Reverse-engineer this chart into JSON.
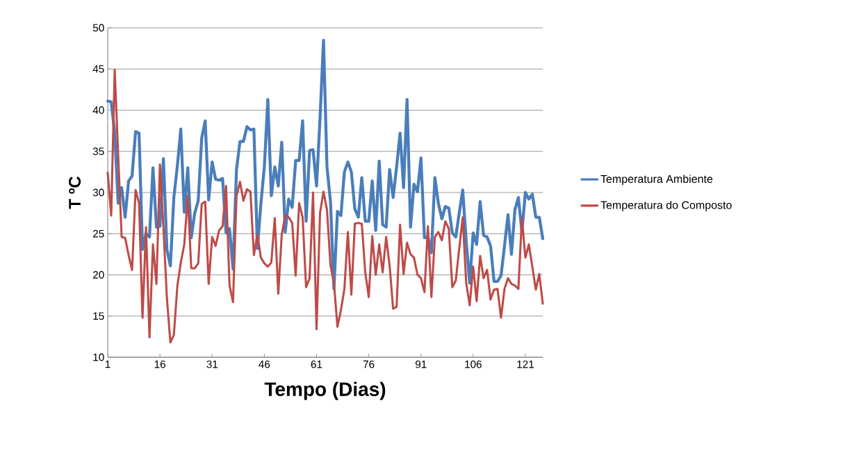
{
  "chart_data": {
    "type": "line",
    "xlabel": "Tempo (Dias)",
    "ylabel": "T ºC",
    "x": [
      1,
      2,
      3,
      4,
      5,
      6,
      7,
      8,
      9,
      10,
      11,
      12,
      13,
      14,
      15,
      16,
      17,
      18,
      19,
      20,
      21,
      22,
      23,
      24,
      25,
      26,
      27,
      28,
      29,
      30,
      31,
      32,
      33,
      34,
      35,
      36,
      37,
      38,
      39,
      40,
      41,
      42,
      43,
      44,
      45,
      46,
      47,
      48,
      49,
      50,
      51,
      52,
      53,
      54,
      55,
      56,
      57,
      58,
      59,
      60,
      61,
      62,
      63,
      64,
      65,
      66,
      67,
      68,
      69,
      70,
      71,
      72,
      73,
      74,
      75,
      76,
      77,
      78,
      79,
      80,
      81,
      82,
      83,
      84,
      85,
      86,
      87,
      88,
      89,
      90,
      91,
      92,
      93,
      94,
      95,
      96,
      97,
      98,
      99,
      100,
      101,
      102,
      103,
      104,
      105,
      106,
      107,
      108,
      109,
      110,
      111,
      112,
      113,
      114,
      115,
      116,
      117,
      118,
      119,
      120,
      121,
      122,
      123,
      124,
      125,
      126
    ],
    "series": [
      {
        "name": "Temperatura  Ambiente",
        "color": "#4a7ebb",
        "values": [
          41.1,
          41.0,
          37.3,
          28.7,
          30.6,
          27.0,
          31.4,
          32.0,
          37.4,
          37.2,
          23.1,
          25.0,
          24.6,
          33.0,
          25.8,
          25.9,
          34.1,
          23.1,
          21.1,
          29.4,
          33.2,
          37.7,
          27.6,
          33.0,
          24.5,
          27.5,
          29.0,
          36.6,
          38.7,
          29.1,
          33.7,
          31.6,
          31.5,
          31.7,
          25.1,
          25.6,
          20.7,
          32.8,
          36.2,
          36.2,
          38.0,
          37.6,
          37.7,
          23.2,
          28.6,
          33.1,
          41.3,
          29.6,
          33.1,
          30.8,
          36.1,
          25.2,
          29.2,
          28.2,
          33.9,
          33.9,
          38.7,
          26.5,
          35.1,
          35.2,
          30.8,
          39.0,
          48.5,
          33.1,
          28.9,
          18.3,
          27.7,
          27.2,
          32.5,
          33.7,
          32.5,
          28.0,
          27.0,
          31.8,
          26.5,
          26.5,
          31.4,
          25.4,
          33.8,
          26.1,
          25.8,
          32.8,
          29.4,
          33.1,
          37.2,
          30.6,
          41.3,
          25.8,
          31.0,
          30.1,
          34.2,
          24.5,
          24.6,
          22.7,
          31.8,
          28.7,
          26.8,
          28.3,
          28.1,
          25.1,
          24.6,
          27.5,
          30.3,
          24.1,
          19.0,
          25.1,
          23.7,
          28.9,
          24.8,
          24.6,
          23.5,
          19.2,
          19.2,
          19.9,
          23.5,
          27.3,
          22.5,
          27.9,
          29.4,
          25.2,
          30.0,
          29.2,
          29.8,
          27.0,
          27.0,
          24.4
        ]
      },
      {
        "name": "Temperatura do Composto",
        "color": "#be4b48",
        "values": [
          32.4,
          27.2,
          44.9,
          34.6,
          24.6,
          24.5,
          22.4,
          20.6,
          30.3,
          28.7,
          14.8,
          25.8,
          12.4,
          23.7,
          18.9,
          33.4,
          25.8,
          17.2,
          11.8,
          12.7,
          18.6,
          21.5,
          23.7,
          29.6,
          20.8,
          20.8,
          21.4,
          28.6,
          28.9,
          18.9,
          24.6,
          23.5,
          25.4,
          25.9,
          30.8,
          18.7,
          16.7,
          29.6,
          31.3,
          29.0,
          30.4,
          30.1,
          22.4,
          24.9,
          22.1,
          21.4,
          21.0,
          21.5,
          26.9,
          17.7,
          24.9,
          27.2,
          27.0,
          26.3,
          19.9,
          28.7,
          27.0,
          18.5,
          19.6,
          30.0,
          13.4,
          27.5,
          30.1,
          27.9,
          21.2,
          19.0,
          13.7,
          15.7,
          18.3,
          25.2,
          17.6,
          26.2,
          26.3,
          26.2,
          20.3,
          17.3,
          24.7,
          20.0,
          23.7,
          20.3,
          24.6,
          21.1,
          15.9,
          16.1,
          26.1,
          20.1,
          23.9,
          22.5,
          22.1,
          20.0,
          19.6,
          17.9,
          25.9,
          17.3,
          24.6,
          25.2,
          24.2,
          26.5,
          25.6,
          18.5,
          19.3,
          23.2,
          27.0,
          19.0,
          16.3,
          21.0,
          16.8,
          22.3,
          19.6,
          20.6,
          17.0,
          18.2,
          18.3,
          14.8,
          18.3,
          19.6,
          18.9,
          18.7,
          18.3,
          26.9,
          22.1,
          23.7,
          21.0,
          18.2,
          20.1,
          16.5
        ]
      }
    ],
    "xlim": [
      1,
      126
    ],
    "xticks": [
      1,
      16,
      31,
      46,
      61,
      76,
      91,
      106,
      121
    ],
    "ylim": [
      10,
      50
    ],
    "yticks": [
      10,
      15,
      20,
      25,
      30,
      35,
      40,
      45,
      50
    ],
    "grid": "y",
    "legend": "right",
    "marker": "none",
    "line_style": "solid"
  }
}
